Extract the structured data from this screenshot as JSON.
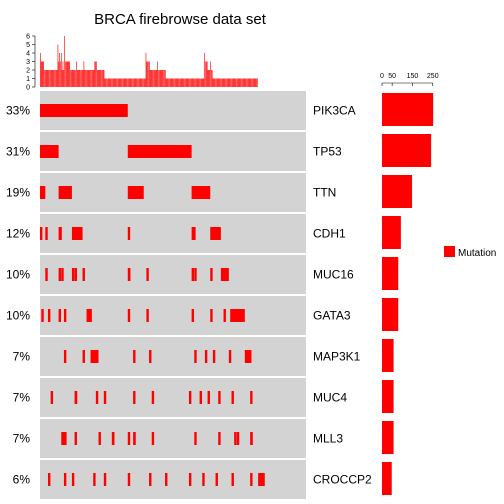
{
  "chart_data": {
    "type": "oncoprint",
    "title": "BRCA firebrowse data set",
    "top_barplot": {
      "yticks": [
        "0",
        "1",
        "2",
        "3",
        "4",
        "5",
        "6"
      ],
      "ymax": 6,
      "values": [
        4,
        3,
        3,
        3,
        3,
        2,
        2,
        2,
        2,
        2,
        2,
        2,
        2,
        2,
        2,
        2,
        2,
        2,
        2,
        2,
        2,
        5,
        3,
        4,
        3,
        4,
        2,
        3,
        2,
        6,
        3,
        3,
        3,
        3,
        3,
        3,
        2,
        2,
        2,
        2,
        2,
        2,
        2,
        3,
        2,
        2,
        2,
        2,
        2,
        2,
        2,
        2,
        3,
        2,
        2,
        2,
        2,
        2,
        2,
        2,
        2,
        2,
        2,
        2,
        2,
        3,
        3,
        3,
        2,
        2,
        2,
        2,
        2,
        2,
        2,
        2,
        2,
        1,
        1,
        1,
        1,
        1,
        1,
        1,
        1,
        1,
        1,
        1,
        1,
        1,
        1,
        1,
        1,
        1,
        1,
        1,
        1,
        1,
        1,
        1,
        1,
        1,
        1,
        1,
        1,
        1,
        1,
        1,
        1,
        1,
        1,
        1,
        1,
        1,
        1,
        1,
        1,
        1,
        1,
        1,
        1,
        1,
        1,
        1,
        1,
        1,
        4,
        3,
        3,
        3,
        3,
        2,
        2,
        2,
        2,
        2,
        2,
        2,
        2,
        2,
        3,
        2,
        2,
        2,
        2,
        2,
        2,
        2,
        2,
        2,
        1,
        1,
        1,
        1,
        1,
        1,
        1,
        1,
        1,
        1,
        1,
        1,
        1,
        1,
        1,
        1,
        1,
        1,
        1,
        1,
        1,
        1,
        1,
        1,
        1,
        1,
        1,
        1,
        1,
        1,
        1,
        1,
        1,
        1,
        1,
        1,
        1,
        1,
        1,
        1,
        1,
        1,
        1,
        1,
        1,
        1,
        4,
        3,
        3,
        3,
        2,
        2,
        2,
        3,
        2,
        2,
        1,
        1,
        1,
        1,
        1,
        1,
        1,
        1,
        1,
        1,
        1,
        1,
        1,
        1,
        1,
        1,
        1,
        1,
        1,
        1,
        1,
        1,
        1,
        1,
        1,
        1,
        1,
        1,
        1,
        1,
        1,
        1,
        1,
        1,
        1,
        1,
        1,
        1,
        1,
        1,
        1,
        1,
        1,
        1,
        1,
        1,
        1,
        1,
        1,
        1,
        1,
        1,
        1,
        1
      ]
    },
    "right_barplot": {
      "xticks": [
        "0",
        "50",
        "150",
        "250"
      ],
      "xmax": 250,
      "values": [
        252,
        242,
        148,
        93,
        80,
        80,
        57,
        57,
        57,
        48
      ]
    },
    "genes": [
      {
        "name": "PIK3CA",
        "pct": "33%",
        "blocks": [
          [
            0,
            0.33
          ]
        ]
      },
      {
        "name": "TP53",
        "pct": "31%",
        "blocks": [
          [
            0,
            0.07
          ],
          [
            0.33,
            0.24
          ]
        ]
      },
      {
        "name": "TTN",
        "pct": "19%",
        "blocks": [
          [
            0,
            0.02
          ],
          [
            0.07,
            0.05
          ],
          [
            0.33,
            0.06
          ],
          [
            0.57,
            0.07
          ]
        ]
      },
      {
        "name": "CDH1",
        "pct": "12%",
        "blocks": [
          [
            0.0,
            0.005
          ],
          [
            0.02,
            0.005
          ],
          [
            0.07,
            0.012
          ],
          [
            0.12,
            0.04
          ],
          [
            0.33,
            0.005
          ],
          [
            0.57,
            0.015
          ],
          [
            0.64,
            0.04
          ]
        ]
      },
      {
        "name": "MUC16",
        "pct": "10%",
        "blocks": [
          [
            0.02,
            0.005
          ],
          [
            0.07,
            0.005
          ],
          [
            0.08,
            0.005
          ],
          [
            0.12,
            0.005
          ],
          [
            0.13,
            0.005
          ],
          [
            0.16,
            0.005
          ],
          [
            0.33,
            0.01
          ],
          [
            0.4,
            0.005
          ],
          [
            0.57,
            0.005
          ],
          [
            0.58,
            0.005
          ],
          [
            0.64,
            0.005
          ],
          [
            0.68,
            0.03
          ]
        ]
      },
      {
        "name": "GATA3",
        "pct": "10%",
        "blocks": [
          [
            0.005,
            0.005
          ],
          [
            0.03,
            0.005
          ],
          [
            0.07,
            0.005
          ],
          [
            0.09,
            0.005
          ],
          [
            0.175,
            0.02
          ],
          [
            0.33,
            0.005
          ],
          [
            0.4,
            0.005
          ],
          [
            0.57,
            0.005
          ],
          [
            0.64,
            0.005
          ],
          [
            0.69,
            0.005
          ],
          [
            0.715,
            0.055
          ]
        ]
      },
      {
        "name": "MAP3K1",
        "pct": "7%",
        "blocks": [
          [
            0.09,
            0.005
          ],
          [
            0.16,
            0.005
          ],
          [
            0.19,
            0.03
          ],
          [
            0.35,
            0.005
          ],
          [
            0.41,
            0.005
          ],
          [
            0.58,
            0.005
          ],
          [
            0.62,
            0.005
          ],
          [
            0.65,
            0.005
          ],
          [
            0.71,
            0.005
          ],
          [
            0.77,
            0.025
          ]
        ]
      },
      {
        "name": "MUC4",
        "pct": "7%",
        "blocks": [
          [
            0.04,
            0.005
          ],
          [
            0.13,
            0.01
          ],
          [
            0.21,
            0.005
          ],
          [
            0.24,
            0.005
          ],
          [
            0.35,
            0.005
          ],
          [
            0.42,
            0.005
          ],
          [
            0.56,
            0.005
          ],
          [
            0.6,
            0.005
          ],
          [
            0.63,
            0.005
          ],
          [
            0.67,
            0.005
          ],
          [
            0.72,
            0.005
          ],
          [
            0.79,
            0.005
          ]
        ]
      },
      {
        "name": "MLL3",
        "pct": "7%",
        "blocks": [
          [
            0.08,
            0.02
          ],
          [
            0.13,
            0.005
          ],
          [
            0.22,
            0.005
          ],
          [
            0.27,
            0.01
          ],
          [
            0.33,
            0.005
          ],
          [
            0.35,
            0.01
          ],
          [
            0.42,
            0.005
          ],
          [
            0.58,
            0.005
          ],
          [
            0.67,
            0.005
          ],
          [
            0.73,
            0.005
          ],
          [
            0.74,
            0.005
          ],
          [
            0.79,
            0.01
          ]
        ]
      },
      {
        "name": "CROCCP2",
        "pct": "6%",
        "blocks": [
          [
            0.03,
            0.005
          ],
          [
            0.09,
            0.005
          ],
          [
            0.12,
            0.005
          ],
          [
            0.2,
            0.005
          ],
          [
            0.24,
            0.005
          ],
          [
            0.33,
            0.005
          ],
          [
            0.41,
            0.005
          ],
          [
            0.47,
            0.005
          ],
          [
            0.56,
            0.005
          ],
          [
            0.61,
            0.005
          ],
          [
            0.66,
            0.005
          ],
          [
            0.72,
            0.005
          ],
          [
            0.79,
            0.005
          ],
          [
            0.82,
            0.025
          ]
        ]
      }
    ],
    "legend": [
      {
        "label": "Mutation",
        "color": "#ff0000"
      }
    ],
    "colors": {
      "mutation": "#ff0000",
      "background": "#d3d3d3",
      "axis": "#000000"
    }
  }
}
